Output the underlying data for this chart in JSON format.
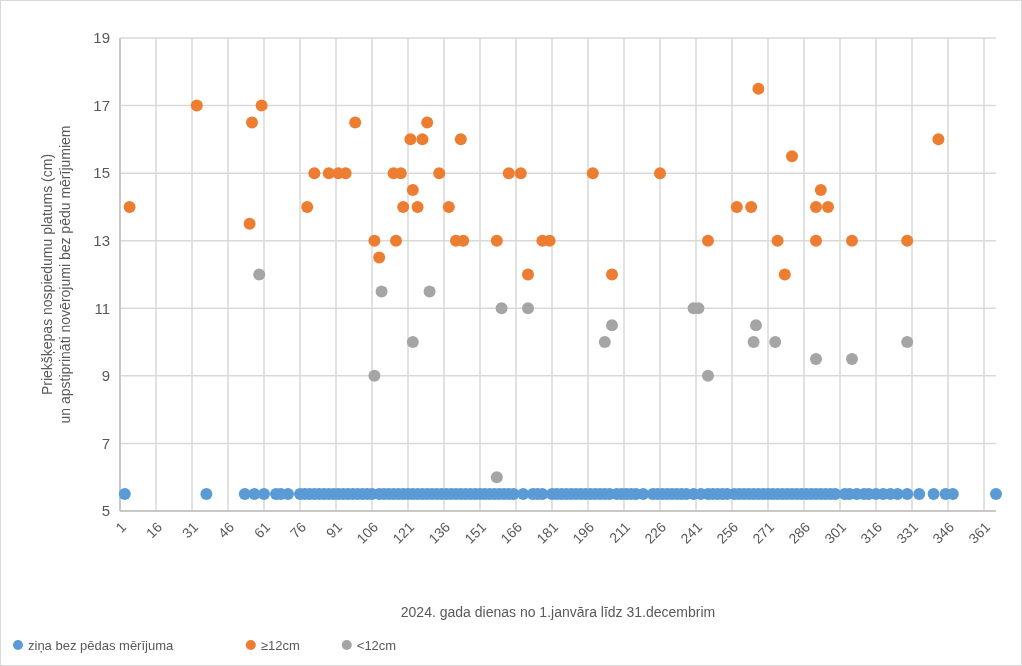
{
  "chart_data": {
    "type": "scatter",
    "xlabel": "2024. gada dienas no 1.janvāra līdz 31.decembrim",
    "ylabel": "Priekšķepas nospiedumu platums (cm)\nun apstiprināti novērojumi bez pēdu mērījumiem",
    "xlim": [
      1,
      366
    ],
    "xticks": [
      1,
      16,
      31,
      46,
      61,
      76,
      91,
      106,
      121,
      136,
      151,
      166,
      181,
      196,
      211,
      226,
      241,
      256,
      271,
      286,
      301,
      316,
      331,
      346,
      361
    ],
    "ylim": [
      5,
      19
    ],
    "yticks": [
      5,
      7,
      9,
      11,
      13,
      15,
      17,
      19
    ],
    "grid": true,
    "legend": "bottom left",
    "marker": "circle",
    "series": [
      {
        "name": "ziņa bez pēdas mērījuma",
        "color": "#5b9bd5",
        "x": [
          3,
          37,
          53,
          57,
          61,
          66,
          68,
          71,
          76,
          78,
          80,
          82,
          84,
          86,
          88,
          90,
          92,
          94,
          96,
          98,
          100,
          102,
          104,
          106,
          109,
          111,
          113,
          115,
          117,
          119,
          121,
          123,
          125,
          127,
          129,
          131,
          133,
          135,
          137,
          139,
          141,
          143,
          145,
          147,
          149,
          151,
          153,
          155,
          157,
          159,
          161,
          163,
          165,
          169,
          173,
          175,
          177,
          181,
          183,
          185,
          187,
          189,
          191,
          193,
          195,
          197,
          199,
          201,
          203,
          205,
          208,
          210,
          212,
          214,
          216,
          219,
          223,
          225,
          227,
          229,
          231,
          233,
          235,
          237,
          240,
          243,
          246,
          248,
          250,
          252,
          254,
          257,
          259,
          261,
          263,
          265,
          267,
          269,
          271,
          273,
          275,
          277,
          279,
          281,
          283,
          285,
          287,
          289,
          291,
          293,
          295,
          297,
          299,
          303,
          305,
          308,
          311,
          313,
          316,
          319,
          322,
          325,
          329,
          334,
          340,
          345,
          348,
          366
        ],
        "values": [
          5.5,
          5.5,
          5.5,
          5.5,
          5.5,
          5.5,
          5.5,
          5.5,
          5.5,
          5.5,
          5.5,
          5.5,
          5.5,
          5.5,
          5.5,
          5.5,
          5.5,
          5.5,
          5.5,
          5.5,
          5.5,
          5.5,
          5.5,
          5.5,
          5.5,
          5.5,
          5.5,
          5.5,
          5.5,
          5.5,
          5.5,
          5.5,
          5.5,
          5.5,
          5.5,
          5.5,
          5.5,
          5.5,
          5.5,
          5.5,
          5.5,
          5.5,
          5.5,
          5.5,
          5.5,
          5.5,
          5.5,
          5.5,
          5.5,
          5.5,
          5.5,
          5.5,
          5.5,
          5.5,
          5.5,
          5.5,
          5.5,
          5.5,
          5.5,
          5.5,
          5.5,
          5.5,
          5.5,
          5.5,
          5.5,
          5.5,
          5.5,
          5.5,
          5.5,
          5.5,
          5.5,
          5.5,
          5.5,
          5.5,
          5.5,
          5.5,
          5.5,
          5.5,
          5.5,
          5.5,
          5.5,
          5.5,
          5.5,
          5.5,
          5.5,
          5.5,
          5.5,
          5.5,
          5.5,
          5.5,
          5.5,
          5.5,
          5.5,
          5.5,
          5.5,
          5.5,
          5.5,
          5.5,
          5.5,
          5.5,
          5.5,
          5.5,
          5.5,
          5.5,
          5.5,
          5.5,
          5.5,
          5.5,
          5.5,
          5.5,
          5.5,
          5.5,
          5.5,
          5.5,
          5.5,
          5.5,
          5.5,
          5.5,
          5.5,
          5.5,
          5.5,
          5.5,
          5.5,
          5.5,
          5.5,
          5.5,
          5.5,
          5.5
        ]
      },
      {
        "name": "≥12cm",
        "color": "#ed7d31",
        "x": [
          5,
          33,
          55,
          56,
          60,
          79,
          82,
          88,
          92,
          95,
          99,
          107,
          109,
          115,
          116,
          118,
          119,
          122,
          123,
          125,
          127,
          129,
          134,
          138,
          141,
          143,
          144,
          158,
          163,
          168,
          171,
          177,
          180,
          198,
          206,
          226,
          246,
          258,
          264,
          267,
          275,
          278,
          281,
          291,
          293,
          291,
          296,
          306,
          329,
          342
        ],
        "values": [
          14,
          17,
          13.5,
          16.5,
          17,
          14,
          15,
          15,
          15,
          15,
          16.5,
          13,
          12.5,
          15,
          13,
          15,
          14,
          16,
          14.5,
          14,
          16,
          16.5,
          15,
          14,
          13,
          16,
          13,
          13,
          15,
          15,
          12,
          13,
          13,
          15,
          12,
          15,
          13,
          14,
          14,
          17.5,
          13,
          12,
          15.5,
          13,
          14.5,
          14,
          14,
          13,
          13,
          16
        ]
      },
      {
        "name": "<12cm",
        "color": "#a5a5a5",
        "x": [
          59,
          107,
          110,
          123,
          130,
          158,
          160,
          171,
          203,
          206,
          240,
          242,
          246,
          265,
          266,
          274,
          291,
          306,
          329
        ],
        "values": [
          12,
          9,
          11.5,
          10,
          11.5,
          6,
          11,
          11,
          10,
          10.5,
          11,
          11,
          9,
          10,
          10.5,
          10,
          9.5,
          9.5,
          10
        ]
      }
    ]
  }
}
